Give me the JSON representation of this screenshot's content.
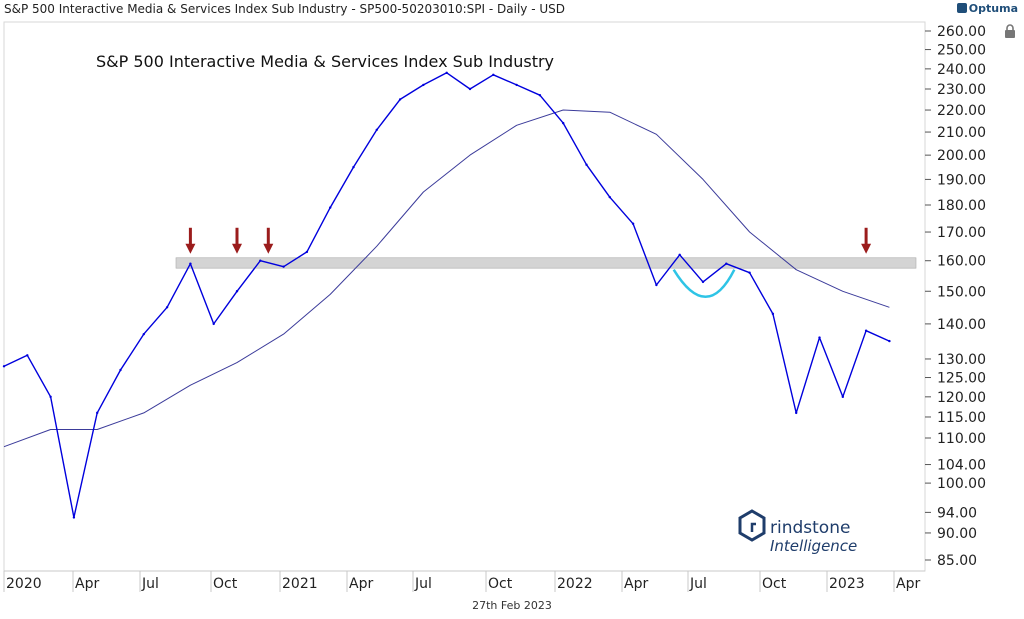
{
  "header": {
    "text": "S&P 500 Interactive Media & Services Index Sub Industry - SP500-50203010:SPI - Daily - USD",
    "brand": "Optuma"
  },
  "footer": {
    "date": "27th Feb 2023"
  },
  "watermark": {
    "line1": "rindstone",
    "line2": "Intelligence",
    "color": "#1f3d6b"
  },
  "colors": {
    "price": "#0000dd",
    "ma": "#3b3b9a",
    "band": "#d4d4d4",
    "arrow": "#9b1c1c",
    "cup": "#2ec4e6"
  },
  "chart_data": {
    "type": "line",
    "title": "S&P 500 Interactive Media & Services Index Sub Industry",
    "y_scale": "log",
    "ylim": [
      85,
      260
    ],
    "x_ticks": [
      "2020",
      "Apr",
      "Jul",
      "Oct",
      "2021",
      "Apr",
      "Jul",
      "Oct",
      "2022",
      "Apr",
      "Jul",
      "Oct",
      "2023",
      "Apr"
    ],
    "y_ticks": [
      "260.00",
      "250.00",
      "240.00",
      "230.00",
      "220.00",
      "210.00",
      "200.00",
      "190.00",
      "180.00",
      "170.00",
      "160.00",
      "150.00",
      "140.00",
      "130.00",
      "125.00",
      "120.00",
      "115.00",
      "110.00",
      "104.00",
      "100.00",
      "94.00",
      "90.00",
      "85.00"
    ],
    "series": [
      {
        "x": [
          "2019-12",
          "2020-01",
          "2020-02",
          "2020-03",
          "2020-04",
          "2020-05",
          "2020-06",
          "2020-07",
          "2020-08",
          "2020-09",
          "2020-10",
          "2020-11",
          "2020-12",
          "2021-01",
          "2021-02",
          "2021-03",
          "2021-04",
          "2021-05",
          "2021-06",
          "2021-07",
          "2021-08",
          "2021-09",
          "2021-10",
          "2021-11",
          "2021-12",
          "2022-01",
          "2022-02",
          "2022-03",
          "2022-04",
          "2022-05",
          "2022-06",
          "2022-07",
          "2022-08",
          "2022-09",
          "2022-10",
          "2022-11",
          "2022-12",
          "2023-01",
          "2023-02"
        ],
        "values": [
          128,
          131,
          120,
          93,
          116,
          127,
          137,
          145,
          159,
          140,
          150,
          160,
          158,
          163,
          179,
          195,
          211,
          225,
          232,
          238,
          230,
          237,
          232,
          227,
          214,
          196,
          183,
          173,
          152,
          162,
          153,
          159,
          156,
          143,
          116,
          136,
          120,
          138,
          135
        ]
      },
      {
        "x": [
          "2019-12",
          "2020-02",
          "2020-04",
          "2020-06",
          "2020-08",
          "2020-10",
          "2020-12",
          "2021-02",
          "2021-04",
          "2021-06",
          "2021-08",
          "2021-10",
          "2021-12",
          "2022-02",
          "2022-04",
          "2022-06",
          "2022-08",
          "2022-10",
          "2022-12",
          "2023-02"
        ],
        "values": [
          108,
          112,
          112,
          116,
          123,
          129,
          137,
          149,
          165,
          185,
          200,
          213,
          220,
          219,
          209,
          190,
          170,
          157,
          150,
          145
        ]
      }
    ],
    "band": [
      157.5,
      161
    ],
    "arrows": [
      "2020-08",
      "2020-10",
      "2020-11",
      "2023-01"
    ]
  }
}
